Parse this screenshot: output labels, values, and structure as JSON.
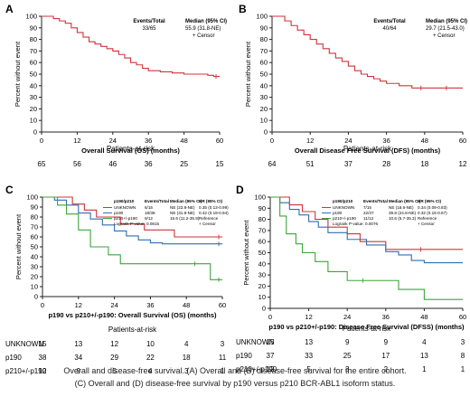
{
  "caption": {
    "line1": "Overall and disease-free survival. (A) Overall and (B) disease-free survival for the entire cohort.",
    "line2": "(C) Overall and (D) disease-free survival by p190 versus p210 BCR-ABL1 isoform status."
  },
  "colors": {
    "red": "#d0333b",
    "blue": "#2e6fb5",
    "green": "#3aa63a",
    "axis": "#222222"
  },
  "chart_data": [
    {
      "panel": "A",
      "type": "line",
      "xlabel": "Overall Survival (OS) (months)",
      "ylabel": "Percent without event",
      "xlim": [
        0,
        60
      ],
      "ylim": [
        0,
        100
      ],
      "xticks": [
        0,
        12,
        24,
        36,
        48,
        60
      ],
      "yticks": [
        0,
        10,
        20,
        30,
        40,
        50,
        60,
        70,
        80,
        90,
        100
      ],
      "legend": {
        "headers": [
          "Events/Total",
          "Median (95% CI)"
        ],
        "rows": [
          [
            "33/65",
            "55.9 (31.8-NE)"
          ]
        ],
        "censor": "+ Censor"
      },
      "series": [
        {
          "color": "red",
          "x": [
            0,
            4,
            6,
            8,
            10,
            12,
            14,
            16,
            18,
            20,
            22,
            24,
            26,
            28,
            30,
            32,
            34,
            36,
            40,
            44,
            48,
            52,
            56,
            58,
            60
          ],
          "y": [
            100,
            98,
            96,
            94,
            90,
            86,
            82,
            78,
            76,
            74,
            72,
            70,
            67,
            64,
            60,
            58,
            55,
            53,
            52,
            51,
            50,
            50,
            49,
            48,
            48
          ]
        }
      ],
      "risk": {
        "title": "Patients-at-risk",
        "x": [
          0,
          12,
          24,
          36,
          48,
          60
        ],
        "rows": [
          {
            "label": "",
            "values": [
              "65",
              "56",
              "46",
              "36",
              "25",
              "15"
            ]
          }
        ]
      }
    },
    {
      "panel": "B",
      "type": "line",
      "xlabel": "Overall Disease Free Survival (DFS) (months)",
      "ylabel": "Percent without event",
      "xlim": [
        0,
        60
      ],
      "ylim": [
        0,
        100
      ],
      "xticks": [
        0,
        12,
        24,
        36,
        48,
        60
      ],
      "yticks": [
        0,
        10,
        20,
        30,
        40,
        50,
        60,
        70,
        80,
        90,
        100
      ],
      "legend": {
        "headers": [
          "Events/Total",
          "Median (95% CI)"
        ],
        "rows": [
          [
            "40/64",
            "29.7 (21.5-43.0)"
          ]
        ],
        "censor": "+ Censor"
      },
      "series": [
        {
          "color": "red",
          "x": [
            0,
            4,
            6,
            8,
            10,
            12,
            14,
            16,
            18,
            20,
            22,
            24,
            26,
            28,
            30,
            32,
            34,
            36,
            40,
            44,
            48,
            52,
            56,
            60
          ],
          "y": [
            100,
            96,
            92,
            88,
            84,
            80,
            76,
            72,
            68,
            64,
            61,
            57,
            53,
            50,
            48,
            46,
            44,
            42,
            40,
            38,
            38,
            38,
            38,
            38
          ]
        }
      ],
      "risk": {
        "title": "Patients-at-risk",
        "x": [
          0,
          12,
          24,
          36,
          48,
          60
        ],
        "rows": [
          {
            "label": "",
            "values": [
              "64",
              "51",
              "37",
              "28",
              "18",
              "12"
            ]
          }
        ]
      }
    },
    {
      "panel": "C",
      "type": "line",
      "xlabel": "p190 vs p210+/-p190: Overall Survival (OS) (months)",
      "ylabel": "Percent without event",
      "xlim": [
        0,
        60
      ],
      "ylim": [
        0,
        100
      ],
      "xticks": [
        0,
        12,
        24,
        36,
        48,
        60
      ],
      "yticks": [
        0,
        10,
        20,
        30,
        40,
        50,
        60,
        70,
        80,
        90,
        100
      ],
      "legend": {
        "headers": [
          "p190/p210",
          "Events/Total",
          "Median (95% CI)",
          "HR (95% CI)"
        ],
        "rows": [
          [
            "UNKNOWN",
            "6/15",
            "NE (22.8-NE)",
            "0.35 (0.13-0.99)"
          ],
          [
            "p190",
            "18/38",
            "NE (31.8-NE)",
            "0.42 (0.19-0.94)"
          ],
          [
            "p210+/-p190",
            "9/12",
            "15.6 (11.2-35.9)",
            "Reference"
          ]
        ],
        "note": "Logrank P-value: 0.0815",
        "censor": "+ Censor"
      },
      "series": [
        {
          "name": "UNKNOWN",
          "color": "red",
          "x": [
            0,
            6,
            10,
            14,
            18,
            22,
            26,
            30,
            34,
            40,
            44,
            50,
            60
          ],
          "y": [
            100,
            100,
            93,
            87,
            80,
            80,
            73,
            73,
            67,
            67,
            60,
            60,
            60
          ]
        },
        {
          "name": "p190",
          "color": "blue",
          "x": [
            0,
            4,
            8,
            12,
            16,
            20,
            24,
            28,
            32,
            36,
            40,
            48,
            60
          ],
          "y": [
            100,
            97,
            92,
            84,
            78,
            72,
            66,
            61,
            57,
            54,
            53,
            53,
            53
          ]
        },
        {
          "name": "p210+/-p190",
          "color": "green",
          "x": [
            0,
            5,
            8,
            12,
            16,
            22,
            26,
            36,
            52,
            56,
            60
          ],
          "y": [
            100,
            92,
            83,
            67,
            50,
            42,
            33,
            33,
            33,
            17,
            17
          ]
        }
      ],
      "risk": {
        "title": "Patients-at-risk",
        "x": [
          0,
          12,
          24,
          36,
          48,
          60
        ],
        "rows": [
          {
            "label": "UNKNOWN",
            "values": [
              "15",
              "13",
              "12",
              "10",
              "4",
              "3"
            ]
          },
          {
            "label": "p190",
            "values": [
              "38",
              "34",
              "29",
              "22",
              "18",
              "11"
            ]
          },
          {
            "label": "p210+/-p190",
            "values": [
              "12",
              "9",
              "5",
              "4",
              "3",
              "1"
            ]
          }
        ]
      }
    },
    {
      "panel": "D",
      "type": "line",
      "xlabel": "p190 vs p210+/-p190: Disease Free Survival (DFSS) (months)",
      "ylabel": "Percent without event",
      "xlim": [
        0,
        60
      ],
      "ylim": [
        0,
        100
      ],
      "xticks": [
        0,
        12,
        24,
        36,
        48,
        60
      ],
      "yticks": [
        0,
        10,
        20,
        30,
        40,
        50,
        60,
        70,
        80,
        90,
        100
      ],
      "legend": {
        "headers": [
          "p190/p210",
          "Events/Total",
          "Median (95% CI)",
          "HR (95% CI)"
        ],
        "rows": [
          [
            "UNKNOWN",
            "7/15",
            "NE (18.6-NE)",
            "0.34 (0.09-0.83)"
          ],
          [
            "p190",
            "22/37",
            "39.8 (24.8-NE)",
            "0.32 (0.15-0.67)"
          ],
          [
            "p210+/-p190",
            "11/12",
            "10.6 (5.7-35.3)",
            "Reference"
          ]
        ],
        "note": "Logrank P-value: 0.0076",
        "censor": "+ Censor"
      },
      "series": [
        {
          "name": "UNKNOWN",
          "color": "red",
          "x": [
            0,
            6,
            10,
            14,
            18,
            24,
            28,
            32,
            36,
            40,
            48,
            60
          ],
          "y": [
            100,
            93,
            87,
            80,
            73,
            67,
            60,
            60,
            53,
            53,
            53,
            53
          ]
        },
        {
          "name": "p190",
          "color": "blue",
          "x": [
            0,
            3,
            6,
            9,
            12,
            15,
            18,
            24,
            30,
            36,
            40,
            44,
            48,
            60
          ],
          "y": [
            100,
            95,
            89,
            84,
            78,
            73,
            68,
            62,
            57,
            51,
            48,
            43,
            41,
            41
          ]
        },
        {
          "name": "p210+/-p190",
          "color": "green",
          "x": [
            0,
            3,
            5,
            8,
            10,
            14,
            18,
            24,
            30,
            40,
            48,
            60
          ],
          "y": [
            100,
            83,
            67,
            58,
            50,
            42,
            33,
            25,
            25,
            17,
            8,
            8
          ]
        }
      ],
      "risk": {
        "title": "Patients-at-risk",
        "x": [
          0,
          12,
          24,
          36,
          48,
          60
        ],
        "rows": [
          {
            "label": "UNKNOWN",
            "values": [
              "15",
              "13",
              "9",
              "9",
              "4",
              "3"
            ]
          },
          {
            "label": "p190",
            "values": [
              "37",
              "33",
              "25",
              "17",
              "13",
              "8"
            ]
          },
          {
            "label": "p210+/-p190",
            "values": [
              "12",
              "5",
              "3",
              "2",
              "1",
              "1"
            ]
          }
        ]
      }
    }
  ]
}
